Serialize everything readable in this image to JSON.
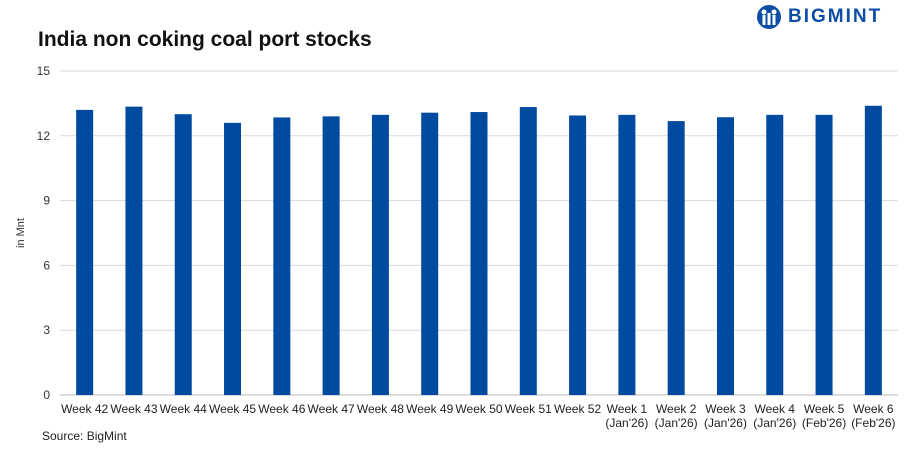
{
  "brand": "BIGMINT",
  "chart_data": {
    "type": "bar",
    "title": "India non coking coal port stocks",
    "ylabel": "in Mnt",
    "xlabel": "",
    "ylim": [
      0,
      15
    ],
    "yticks": [
      0,
      3,
      6,
      9,
      12,
      15
    ],
    "grid": true,
    "bar_color": "#004a9f",
    "categories": [
      "Week 42",
      "Week 43",
      "Week 44",
      "Week 45",
      "Week 46",
      "Week 47",
      "Week 48",
      "Week 49",
      "Week 50",
      "Week 51",
      "Week 52",
      "Week 1\n(Jan'26)",
      "Week 2\n(Jan'26)",
      "Week 3\n(Jan'26)",
      "Week 4\n(Jan'26)",
      "Week 5\n(Feb'26)",
      "Week 6\n(Feb'26)"
    ],
    "values": [
      13.2,
      13.35,
      13.0,
      12.6,
      12.85,
      12.9,
      12.97,
      13.07,
      13.1,
      13.33,
      12.94,
      12.97,
      12.68,
      12.86,
      12.97,
      12.97,
      13.39
    ]
  },
  "source": "Source: BigMint"
}
